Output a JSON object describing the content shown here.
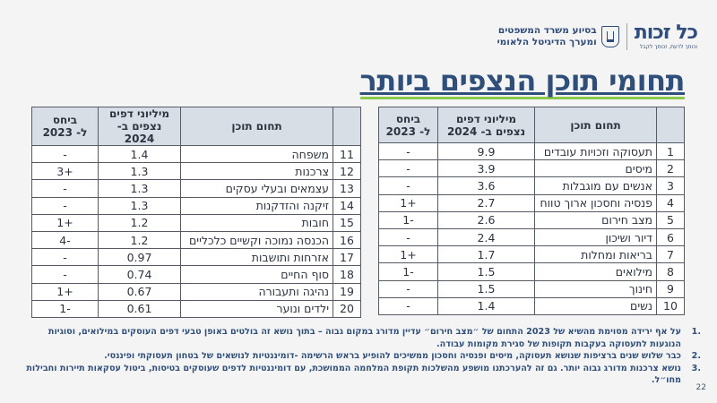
{
  "header": {
    "brand_name": "כל זכות",
    "brand_tagline": "וכותך לדעת, זכותך לקבל",
    "partner_line1": "בסיוע משרד המשפטים",
    "partner_line2": "ומערך הדיגיטל הלאומי",
    "emblem": "state-emblem-icon"
  },
  "title": "תחומי תוכן הנצפים ביותר",
  "colors": {
    "title": "#2f4f7a",
    "accent_underline": "#8cc84b",
    "table_header_bg": "#d7dee6",
    "background": "#f4f4f4"
  },
  "table": {
    "headers": {
      "rank": "",
      "topic": "תחום תוכן",
      "views_line1": "מיליוני דפים",
      "views_line2": "נצפים ב- 2024",
      "change_line1": "ביחס",
      "change_line2": "ל- 2023"
    },
    "right_rows": [
      {
        "rank": "1",
        "topic": "תעסוקה וזכויות עובדים",
        "views": "9.9",
        "change": "-"
      },
      {
        "rank": "2",
        "topic": "מיסים",
        "views": "3.9",
        "change": "-"
      },
      {
        "rank": "3",
        "topic": "אנשים עם מוגבלות",
        "views": "3.6",
        "change": "-"
      },
      {
        "rank": "4",
        "topic": "פנסיה וחסכון ארוך טווח",
        "views": "2.7",
        "change": "+1"
      },
      {
        "rank": "5",
        "topic": "מצב חירום",
        "views": "2.6",
        "change": "-1"
      },
      {
        "rank": "6",
        "topic": "דיור ושיכון",
        "views": "2.4",
        "change": "-"
      },
      {
        "rank": "7",
        "topic": "בריאות ומחלות",
        "views": "1.7",
        "change": "+1"
      },
      {
        "rank": "8",
        "topic": "מילואים",
        "views": "1.5",
        "change": "-1"
      },
      {
        "rank": "9",
        "topic": "חינוך",
        "views": "1.5",
        "change": "-"
      },
      {
        "rank": "10",
        "topic": "נשים",
        "views": "1.4",
        "change": "-"
      }
    ],
    "left_rows": [
      {
        "rank": "11",
        "topic": "משפחה",
        "views": "1.4",
        "change": "-"
      },
      {
        "rank": "12",
        "topic": "צרכנות",
        "views": "1.3",
        "change": "+3"
      },
      {
        "rank": "13",
        "topic": "עצמאים ובעלי עסקים",
        "views": "1.3",
        "change": "-"
      },
      {
        "rank": "14",
        "topic": "זיקנה והזדקנות",
        "views": "1.3",
        "change": "-"
      },
      {
        "rank": "15",
        "topic": "חובות",
        "views": "1.2",
        "change": "+1"
      },
      {
        "rank": "16",
        "topic": "הכנסה נמוכה וקשיים כלכליים",
        "views": "1.2",
        "change": "-4"
      },
      {
        "rank": "17",
        "topic": "אזרחות ותושבות",
        "views": "0.97",
        "change": "-"
      },
      {
        "rank": "18",
        "topic": "סוף החיים",
        "views": "0.74",
        "change": "-"
      },
      {
        "rank": "19",
        "topic": "נהיגה ותעבורה",
        "views": "0.67",
        "change": "+1"
      },
      {
        "rank": "20",
        "topic": "ילדים ונוער",
        "views": "0.61",
        "change": "-1"
      }
    ]
  },
  "notes": [
    {
      "n": ".1",
      "text": "על אף ירידה מסוימת מהשיא של 2023 התחום של ״מצב חירום״ עדיין מדורג במקום גבוה – בתוך נושא זה בולטים באופן טבעי דפים העוסקים במילואים, וסוגיות הנוגעות לתעסוקה בעקבות תקופות של סגירת מקומות עבודה."
    },
    {
      "n": ".2",
      "text": "כבר שלוש שנים ברציפות שנושא תעסוקה, מיסים ופנסיה וחסכון ממשיכים להופיע בראש הרשימה -דומיננטיות לנושאים של בטחון תעסוקתי ופיננסי."
    },
    {
      "n": ".3",
      "text": "נושא צרכנות מדורג גבוה יותר. גם זה להערכתנו מושפע  מהשלכות תקופת המלחמה הממושכת, עם דומיננטיות לדפים שעוסקים בטיסות, ביטול עסקאות תיירות וחבילות מחו״ל."
    }
  ],
  "page_number": "22"
}
